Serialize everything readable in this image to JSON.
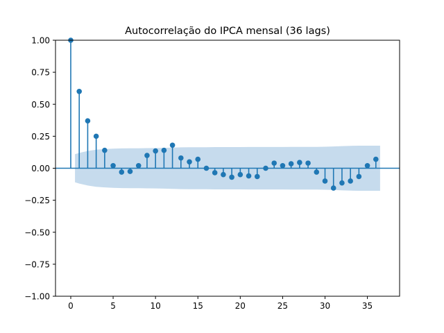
{
  "chart_data": {
    "type": "stem",
    "title": "Autocorrelação do IPCA mensal (36 lags)",
    "xlabel": "",
    "ylabel": "",
    "xlim": [
      -1.8,
      38.8
    ],
    "ylim": [
      -1.0,
      1.0
    ],
    "xticks": [
      "0",
      "5",
      "10",
      "15",
      "20",
      "25",
      "30",
      "35"
    ],
    "yticks": [
      "−1.00",
      "−0.75",
      "−0.50",
      "−0.25",
      "0.00",
      "0.25",
      "0.50",
      "0.75",
      "1.00"
    ],
    "grid": false,
    "lags": [
      0,
      1,
      2,
      3,
      4,
      5,
      6,
      7,
      8,
      9,
      10,
      11,
      12,
      13,
      14,
      15,
      16,
      17,
      18,
      19,
      20,
      21,
      22,
      23,
      24,
      25,
      26,
      27,
      28,
      29,
      30,
      31,
      32,
      33,
      34,
      35,
      36
    ],
    "acf": [
      1.0,
      0.6,
      0.37,
      0.25,
      0.14,
      0.02,
      -0.03,
      -0.025,
      0.02,
      0.1,
      0.135,
      0.14,
      0.18,
      0.08,
      0.05,
      0.07,
      0.0,
      -0.035,
      -0.05,
      -0.07,
      -0.05,
      -0.06,
      -0.065,
      0.0,
      0.04,
      0.02,
      0.035,
      0.045,
      0.04,
      -0.03,
      -0.1,
      -0.155,
      -0.115,
      -0.1,
      -0.065,
      0.02,
      0.07
    ],
    "confint": {
      "lags": [
        0.5,
        1,
        2,
        3,
        4,
        5,
        6,
        7,
        8,
        9,
        10,
        11,
        12,
        13,
        14,
        15,
        16,
        17,
        18,
        19,
        20,
        21,
        22,
        23,
        24,
        25,
        26,
        27,
        28,
        29,
        30,
        31,
        32,
        33,
        34,
        35,
        36.5
      ],
      "upper": [
        0.11,
        0.12,
        0.135,
        0.145,
        0.15,
        0.153,
        0.155,
        0.156,
        0.156,
        0.157,
        0.158,
        0.159,
        0.161,
        0.163,
        0.164,
        0.164,
        0.164,
        0.165,
        0.165,
        0.165,
        0.165,
        0.166,
        0.166,
        0.166,
        0.166,
        0.166,
        0.167,
        0.167,
        0.167,
        0.167,
        0.168,
        0.17,
        0.173,
        0.175,
        0.176,
        0.176,
        0.176
      ]
    },
    "colors": {
      "stem": "#1f77b4",
      "band": "#c6dbed",
      "axis": "#000000"
    }
  }
}
